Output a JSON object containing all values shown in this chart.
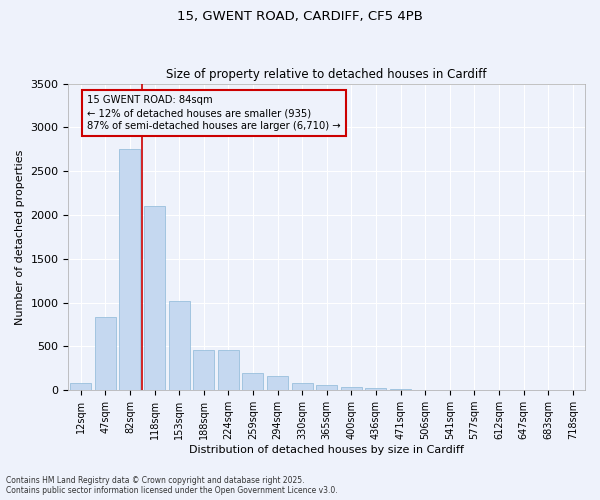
{
  "title1": "15, GWENT ROAD, CARDIFF, CF5 4PB",
  "title2": "Size of property relative to detached houses in Cardiff",
  "xlabel": "Distribution of detached houses by size in Cardiff",
  "ylabel": "Number of detached properties",
  "bar_color": "#c5d8f0",
  "bar_edge_color": "#8cb8d8",
  "vline_color": "#cc0000",
  "vline_x": 2.5,
  "annotation_text": "15 GWENT ROAD: 84sqm\n← 12% of detached houses are smaller (935)\n87% of semi-detached houses are larger (6,710) →",
  "annotation_box_color": "#cc0000",
  "categories": [
    "12sqm",
    "47sqm",
    "82sqm",
    "118sqm",
    "153sqm",
    "188sqm",
    "224sqm",
    "259sqm",
    "294sqm",
    "330sqm",
    "365sqm",
    "400sqm",
    "436sqm",
    "471sqm",
    "506sqm",
    "541sqm",
    "577sqm",
    "612sqm",
    "647sqm",
    "683sqm",
    "718sqm"
  ],
  "values": [
    80,
    830,
    2750,
    2100,
    1020,
    460,
    460,
    200,
    160,
    80,
    55,
    35,
    20,
    10,
    5,
    3,
    2,
    1,
    1,
    0,
    0
  ],
  "ylim": [
    0,
    3500
  ],
  "yticks": [
    0,
    500,
    1000,
    1500,
    2000,
    2500,
    3000,
    3500
  ],
  "background_color": "#eef2fb",
  "grid_color": "#ffffff",
  "footer1": "Contains HM Land Registry data © Crown copyright and database right 2025.",
  "footer2": "Contains public sector information licensed under the Open Government Licence v3.0."
}
